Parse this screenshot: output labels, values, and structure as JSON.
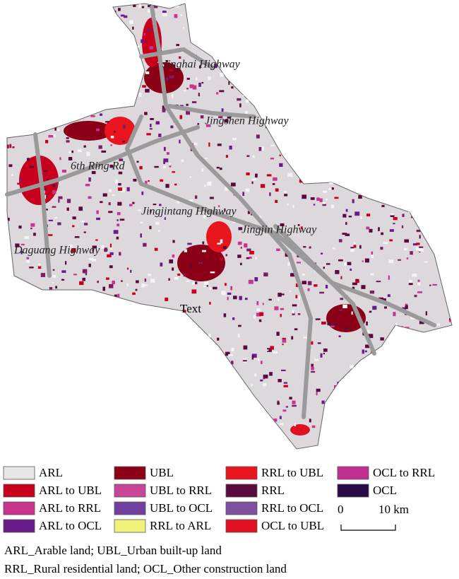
{
  "map": {
    "labels": [
      {
        "text": "Jinghai Highway"
      },
      {
        "text": "Jingshen Highway"
      },
      {
        "text": "6th Ring Rd"
      },
      {
        "text": "Jingjintang Highway"
      },
      {
        "text": "Jingjin Highway"
      },
      {
        "text": "Daguang Highway"
      },
      {
        "text": "Text"
      }
    ],
    "legend": [
      {
        "label": "ARL",
        "color": "#e6e6e6"
      },
      {
        "label": "ARL to UBL",
        "color": "#c8001e"
      },
      {
        "label": "ARL to RRL",
        "color": "#c8358f"
      },
      {
        "label": "ARL to OCL",
        "color": "#6a1b8a"
      },
      {
        "label": "UBL",
        "color": "#8b0016"
      },
      {
        "label": "UBL to RRL",
        "color": "#c8459a"
      },
      {
        "label": "UBL to OCL",
        "color": "#7040a0"
      },
      {
        "label": "RRL to ARL",
        "color": "#f0f07a"
      },
      {
        "label": "RRL to UBL",
        "color": "#e8141e"
      },
      {
        "label": "RRL",
        "color": "#5a0a3c"
      },
      {
        "label": "RRL to OCL",
        "color": "#8050a0"
      },
      {
        "label": "OCL to UBL",
        "color": "#e01020"
      },
      {
        "label": "OCL to RRL",
        "color": "#c03090"
      },
      {
        "label": "OCL",
        "color": "#280a46"
      }
    ],
    "scale": {
      "start": "0",
      "end": "10 km"
    },
    "notes": [
      "ARL_Arable land; UBL_Urban built-up land",
      "RRL_Rural residential land; OCL_Other construction land"
    ]
  }
}
